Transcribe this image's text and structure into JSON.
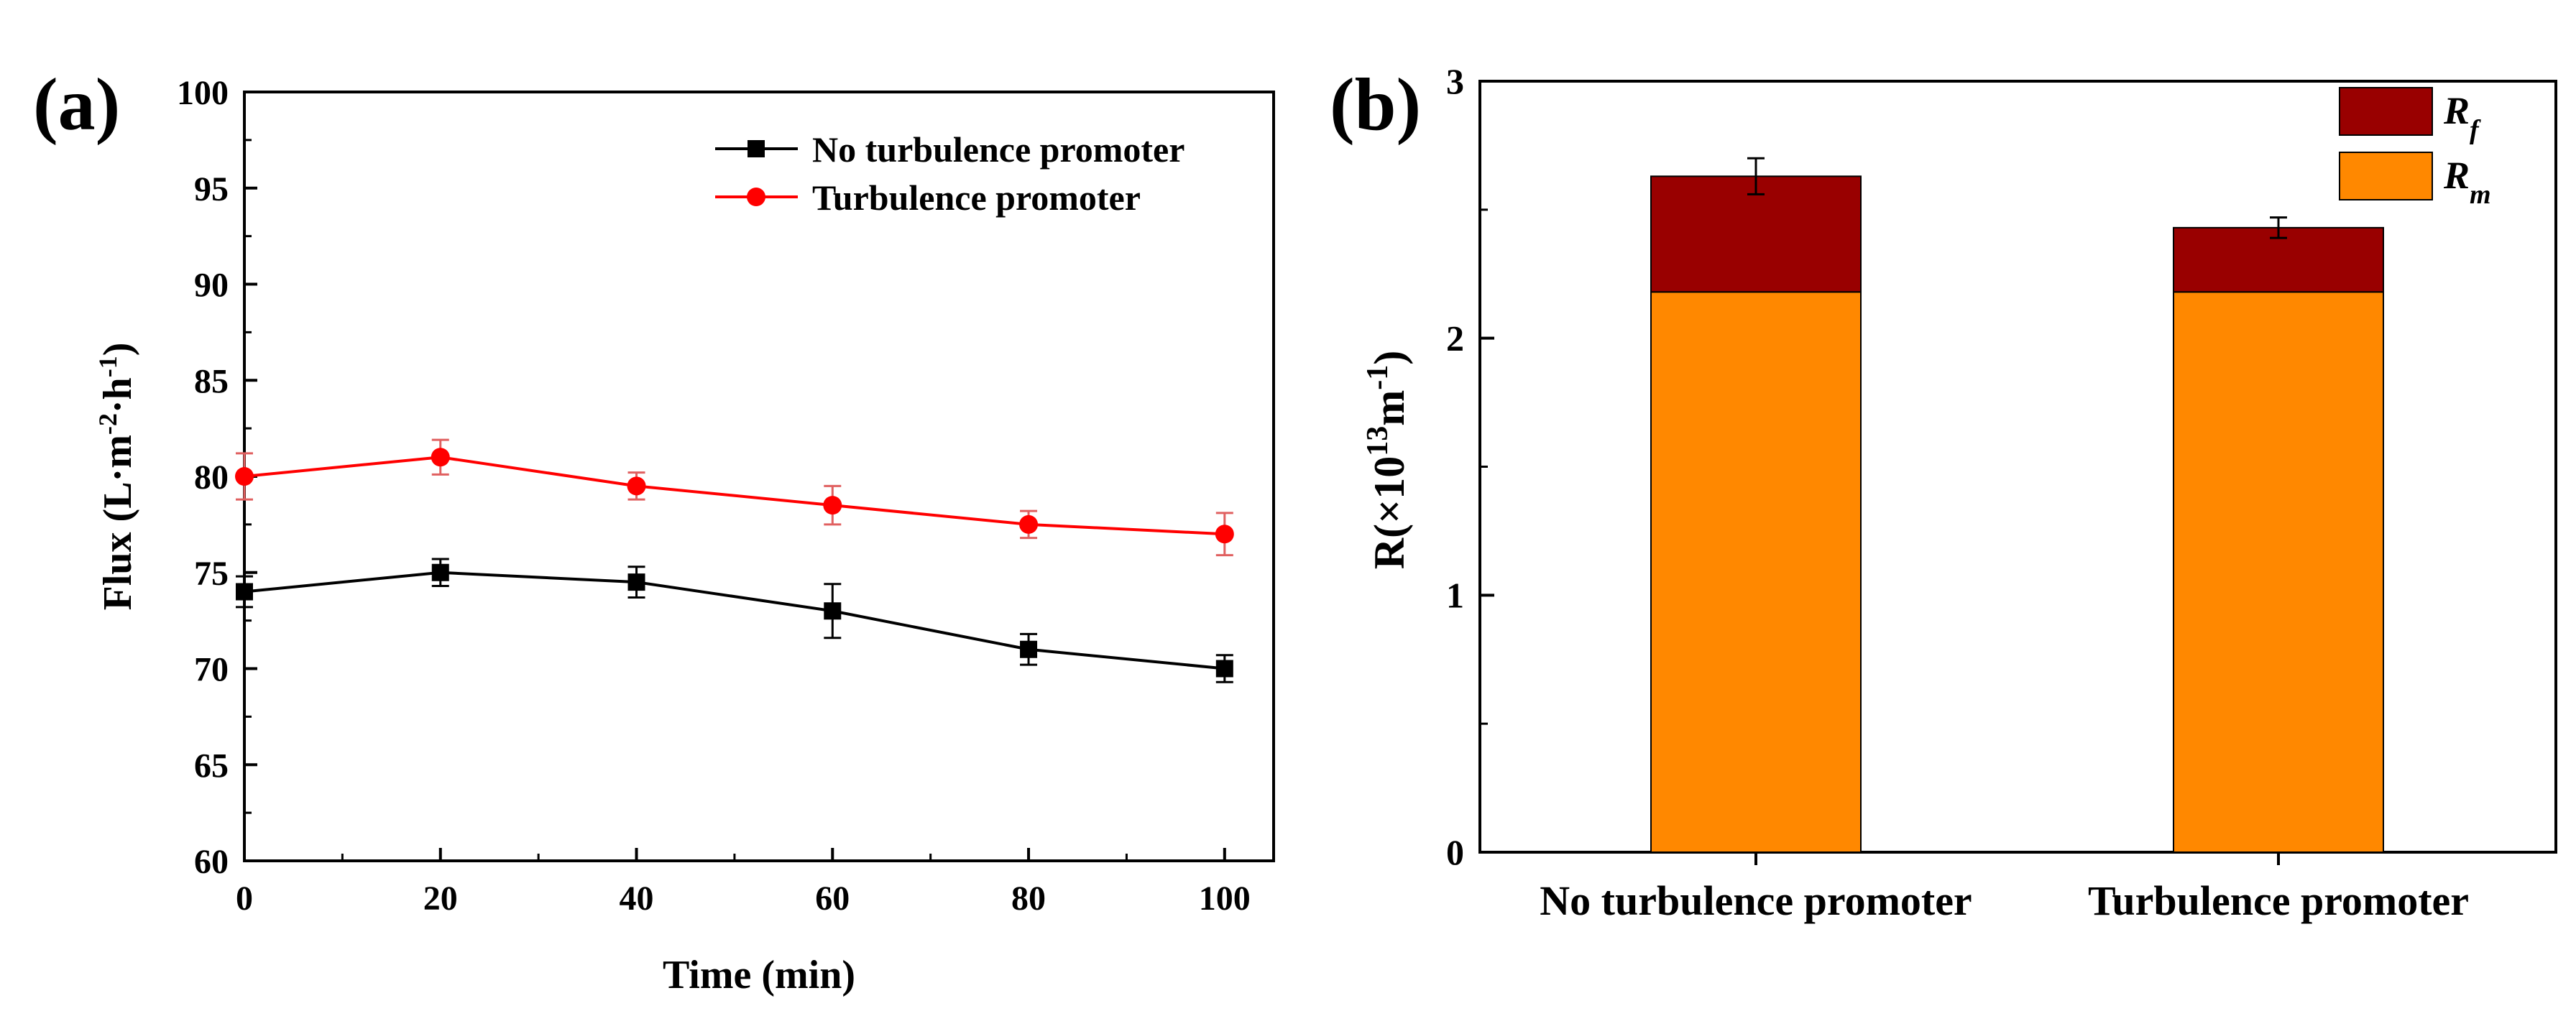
{
  "panel_labels": [
    "(a)",
    "(b)"
  ],
  "colors": {
    "no_promoter_line": "#000000",
    "promoter_line": "#ff0000",
    "promoter_error": "#e06060",
    "rf_fill": "#990000",
    "rm_fill": "#ff8800"
  },
  "chart_data": [
    {
      "type": "line",
      "panel": "(a)",
      "xlabel": "Time (min)",
      "ylabel": "Flux (L·m-2·h-1)",
      "xlim": [
        0,
        105
      ],
      "ylim": [
        60,
        100
      ],
      "xticks": [
        0,
        20,
        40,
        60,
        80,
        100
      ],
      "yticks": [
        60,
        65,
        70,
        75,
        80,
        85,
        90,
        95,
        100
      ],
      "x": [
        0,
        20,
        40,
        60,
        80,
        100
      ],
      "legend_position": "top-right",
      "series": [
        {
          "name": "No turbulence promoter",
          "marker": "square",
          "color": "#000000",
          "values": [
            74.0,
            75.0,
            74.5,
            73.0,
            71.0,
            70.0
          ],
          "errors": [
            0.8,
            0.7,
            0.8,
            1.4,
            0.8,
            0.7
          ]
        },
        {
          "name": "Turbulence promoter",
          "marker": "circle",
          "color": "#ff0000",
          "values": [
            80.0,
            81.0,
            79.5,
            78.5,
            77.5,
            77.0
          ],
          "errors": [
            1.2,
            0.9,
            0.7,
            1.0,
            0.7,
            1.1
          ]
        }
      ]
    },
    {
      "type": "bar",
      "stacked": true,
      "panel": "(b)",
      "ylabel": "R(×10^13 m^-1)",
      "ylim": [
        0,
        3
      ],
      "yticks": [
        0,
        1,
        2,
        3
      ],
      "categories": [
        "No turbulence promoter",
        "Turbulence promoter"
      ],
      "legend_position": "top-right",
      "series": [
        {
          "name": "Rm",
          "color": "#ff8800",
          "values": [
            2.18,
            2.18
          ],
          "errors": [
            0,
            0
          ]
        },
        {
          "name": "Rf",
          "color": "#990000",
          "values": [
            0.45,
            0.25
          ],
          "errors": [
            0.07,
            0.04
          ]
        }
      ]
    }
  ]
}
